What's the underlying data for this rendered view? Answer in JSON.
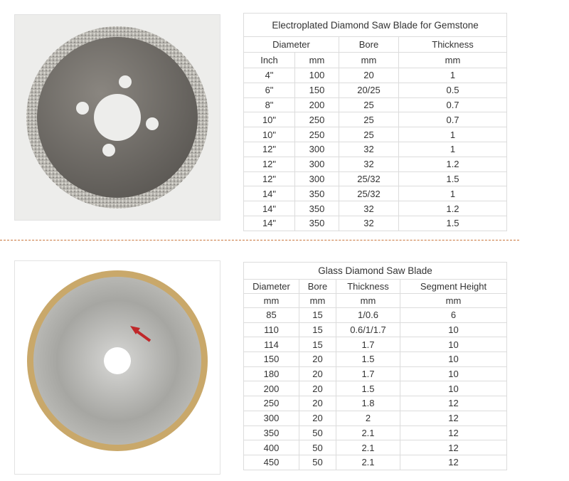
{
  "table_1": {
    "title": "Electroplated Diamond Saw Blade for Gemstone",
    "header": [
      "Diameter",
      "Bore",
      "Thickness"
    ],
    "units": [
      "Inch",
      "mm",
      "mm",
      "mm"
    ],
    "rows": [
      [
        "4\"",
        "100",
        "20",
        "1"
      ],
      [
        "6\"",
        "150",
        "20/25",
        "0.5"
      ],
      [
        "8\"",
        "200",
        "25",
        "0.7"
      ],
      [
        "10\"",
        "250",
        "25",
        "0.7"
      ],
      [
        "10\"",
        "250",
        "25",
        "1"
      ],
      [
        "12\"",
        "300",
        "32",
        "1"
      ],
      [
        "12\"",
        "300",
        "32",
        "1.2"
      ],
      [
        "12\"",
        "300",
        "25/32",
        "1.5"
      ],
      [
        "14\"",
        "350",
        "25/32",
        "1"
      ],
      [
        "14\"",
        "350",
        "32",
        "1.2"
      ],
      [
        "14\"",
        "350",
        "32",
        "1.5"
      ]
    ]
  },
  "table_2": {
    "title": "Glass Diamond Saw Blade",
    "header": [
      "Diameter",
      "Bore",
      "Thickness",
      "Segment Height"
    ],
    "units": [
      "mm",
      "mm",
      "mm",
      "mm"
    ],
    "rows": [
      [
        "85",
        "15",
        "1/0.6",
        "6"
      ],
      [
        "110",
        "15",
        "0.6/1/1.7",
        "10"
      ],
      [
        "114",
        "15",
        "1.7",
        "10"
      ],
      [
        "150",
        "20",
        "1.5",
        "10"
      ],
      [
        "180",
        "20",
        "1.7",
        "10"
      ],
      [
        "200",
        "20",
        "1.5",
        "10"
      ],
      [
        "250",
        "20",
        "1.8",
        "12"
      ],
      [
        "300",
        "20",
        "2",
        "12"
      ],
      [
        "350",
        "50",
        "2.1",
        "12"
      ],
      [
        "400",
        "50",
        "2.1",
        "12"
      ],
      [
        "450",
        "50",
        "2.1",
        "12"
      ]
    ]
  }
}
